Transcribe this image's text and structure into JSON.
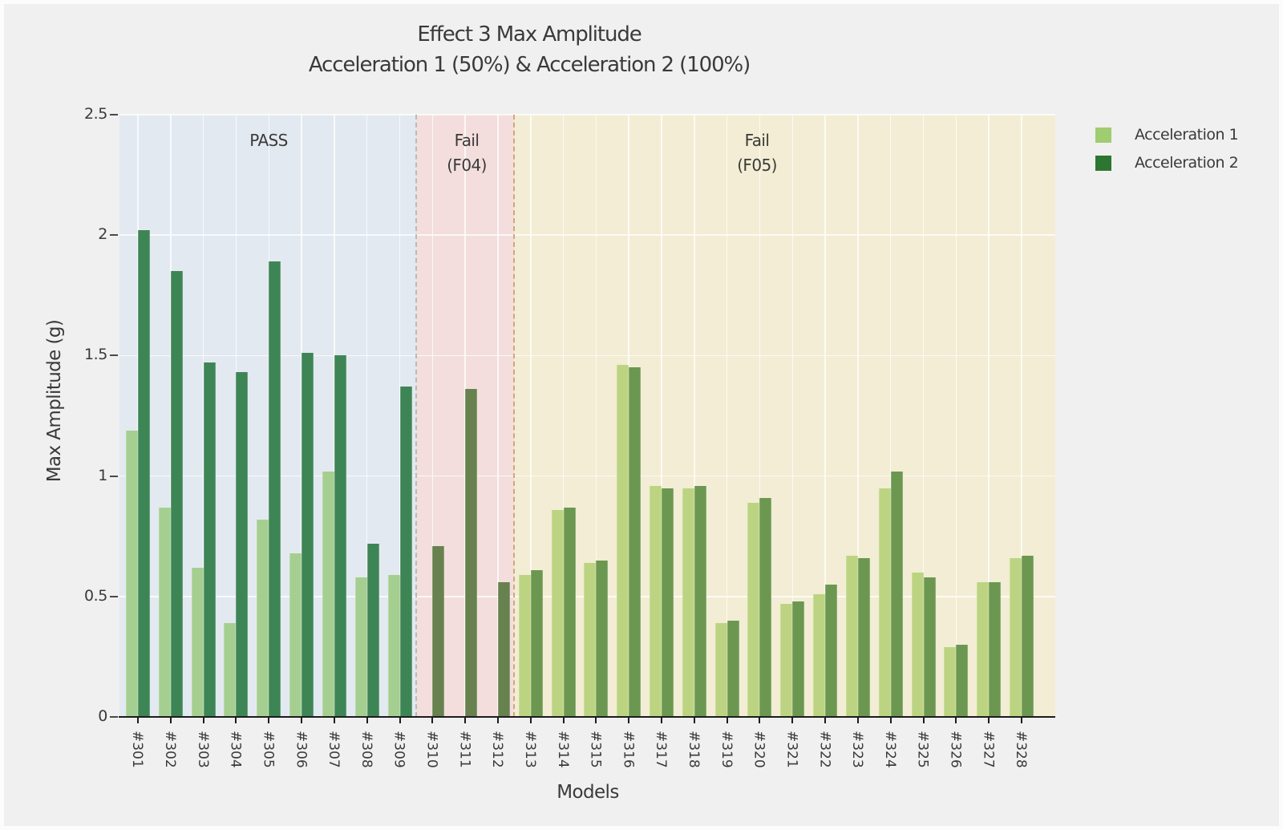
{
  "chart_data": {
    "type": "bar",
    "title_line1": "Effect 3 Max Amplitude",
    "title_line2": "Acceleration 1 (50%) & Acceleration 2 (100%)",
    "xlabel": "Models",
    "ylabel": "Max Amplitude (g)",
    "ylim": [
      0,
      2.5
    ],
    "y_ticks": [
      {
        "label": "0",
        "value": 0
      },
      {
        "label": "0.5",
        "value": 0.5
      },
      {
        "label": "1",
        "value": 1
      },
      {
        "label": "1.5",
        "value": 1.5
      },
      {
        "label": "2",
        "value": 2
      },
      {
        "label": "2.5",
        "value": 2.5
      }
    ],
    "grid": true,
    "legend_position": "outside-upper-right",
    "categories": [
      "#301",
      "#302",
      "#303",
      "#304",
      "#305",
      "#306",
      "#307",
      "#308",
      "#309",
      "#310",
      "#311",
      "#312",
      "#313",
      "#314",
      "#315",
      "#316",
      "#317",
      "#318",
      "#319",
      "#320",
      "#321",
      "#322",
      "#323",
      "#324",
      "#325",
      "#326",
      "#327",
      "#328"
    ],
    "series": [
      {
        "name": "Acceleration 1",
        "color": "#9fcd6f",
        "values": [
          1.19,
          0.87,
          0.62,
          0.39,
          0.82,
          0.68,
          1.02,
          0.58,
          0.59,
          null,
          null,
          null,
          0.59,
          0.86,
          0.64,
          1.46,
          0.96,
          0.95,
          0.39,
          0.89,
          0.47,
          0.51,
          0.67,
          0.95,
          0.6,
          0.29,
          0.56,
          0.66
        ]
      },
      {
        "name": "Acceleration 2",
        "color": "#2d7632",
        "values": [
          2.02,
          1.85,
          1.47,
          1.43,
          1.89,
          1.51,
          1.5,
          0.72,
          1.37,
          0.71,
          1.36,
          0.56,
          0.61,
          0.87,
          0.65,
          1.45,
          0.95,
          0.96,
          0.4,
          0.91,
          0.48,
          0.55,
          0.66,
          1.02,
          0.58,
          0.3,
          0.56,
          0.67
        ]
      }
    ],
    "regions": [
      {
        "id": "pass",
        "label_lines": [
          "PASS"
        ],
        "start": "#301",
        "end": "#309",
        "bg": "#e3e9f0",
        "bar_colors": [
          "#a5cf90",
          "#3e8556"
        ]
      },
      {
        "id": "fail-f04",
        "label_lines": [
          "Fail",
          "(F04)"
        ],
        "start": "#310",
        "end": "#312",
        "bg": "#f3dedd",
        "bar_colors": [
          "#84a35e",
          "#67814f"
        ],
        "divider_color": "#b7babd"
      },
      {
        "id": "fail-f05",
        "label_lines": [
          "Fail",
          "(F05)"
        ],
        "start": "#313",
        "end": "#328",
        "bg": "#f2edd4",
        "bar_colors": [
          "#bcd481",
          "#6c9750"
        ],
        "divider_color": "#cfa87c"
      }
    ]
  }
}
